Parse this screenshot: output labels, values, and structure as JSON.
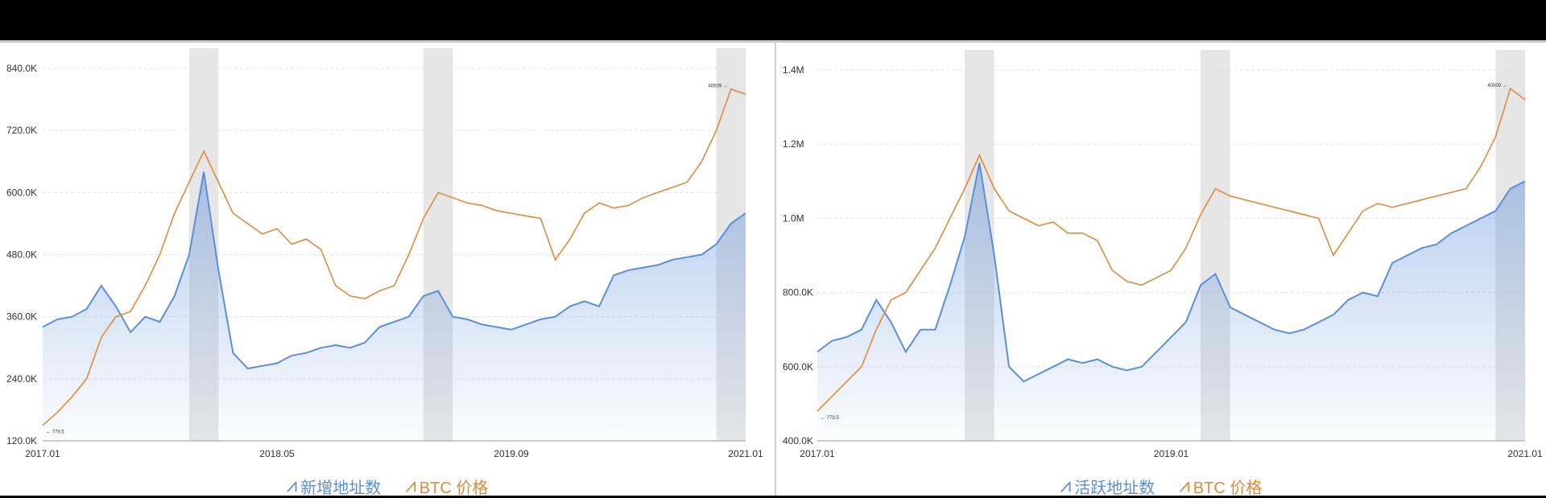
{
  "chart_data": [
    {
      "type": "line",
      "title": "",
      "xlabel": "",
      "ylabel": "",
      "x_range": [
        "2017-01",
        "2021-01"
      ],
      "x_ticks": [
        "2017.01",
        "2018.05",
        "2019.09",
        "2021.01"
      ],
      "ylim": [
        120000,
        840000
      ],
      "y_ticks": [
        "120.0K",
        "240.0K",
        "360.0K",
        "480.0K",
        "600.0K",
        "720.0K",
        "840.0K"
      ],
      "grid": true,
      "legend_position": "bottom-center",
      "colors": {
        "address": "#5b8fd9",
        "price": "#e08a3c",
        "shade": "#e6e6e6"
      },
      "shaded_periods": [
        [
          "2017-11",
          "2018-01"
        ],
        [
          "2019-03",
          "2019-05"
        ],
        [
          "2020-11",
          "2021-01"
        ]
      ],
      "series": [
        {
          "name": "新增地址数",
          "x": [
            "2017-01",
            "2017-02",
            "2017-03",
            "2017-04",
            "2017-05",
            "2017-06",
            "2017-07",
            "2017-08",
            "2017-09",
            "2017-10",
            "2017-11",
            "2017-12",
            "2018-01",
            "2018-02",
            "2018-03",
            "2018-04",
            "2018-05",
            "2018-06",
            "2018-07",
            "2018-08",
            "2018-09",
            "2018-10",
            "2018-11",
            "2018-12",
            "2019-01",
            "2019-02",
            "2019-03",
            "2019-04",
            "2019-05",
            "2019-06",
            "2019-07",
            "2019-08",
            "2019-09",
            "2019-10",
            "2019-11",
            "2019-12",
            "2020-01",
            "2020-02",
            "2020-03",
            "2020-04",
            "2020-05",
            "2020-06",
            "2020-07",
            "2020-08",
            "2020-09",
            "2020-10",
            "2020-11",
            "2020-12",
            "2021-01"
          ],
          "values": [
            340000,
            355000,
            360000,
            375000,
            420000,
            380000,
            330000,
            360000,
            350000,
            400000,
            480000,
            640000,
            450000,
            290000,
            260000,
            265000,
            270000,
            285000,
            290000,
            300000,
            305000,
            300000,
            310000,
            340000,
            350000,
            360000,
            400000,
            410000,
            360000,
            355000,
            345000,
            340000,
            335000,
            345000,
            355000,
            360000,
            380000,
            390000,
            380000,
            440000,
            450000,
            455000,
            460000,
            470000,
            475000,
            480000,
            500000,
            540000,
            560000
          ]
        },
        {
          "name": "BTC 价格",
          "x": [
            "2017-01",
            "2017-02",
            "2017-03",
            "2017-04",
            "2017-05",
            "2017-06",
            "2017-07",
            "2017-08",
            "2017-09",
            "2017-10",
            "2017-11",
            "2017-12",
            "2018-01",
            "2018-02",
            "2018-03",
            "2018-04",
            "2018-05",
            "2018-06",
            "2018-07",
            "2018-08",
            "2018-09",
            "2018-10",
            "2018-11",
            "2018-12",
            "2019-01",
            "2019-02",
            "2019-03",
            "2019-04",
            "2019-05",
            "2019-06",
            "2019-07",
            "2019-08",
            "2019-09",
            "2019-10",
            "2019-11",
            "2019-12",
            "2020-01",
            "2020-02",
            "2020-03",
            "2020-04",
            "2020-05",
            "2020-06",
            "2020-07",
            "2020-08",
            "2020-09",
            "2020-10",
            "2020-11",
            "2020-12",
            "2021-01"
          ],
          "values": [
            150000,
            175000,
            205000,
            240000,
            320000,
            360000,
            370000,
            420000,
            480000,
            560000,
            620000,
            680000,
            620000,
            560000,
            540000,
            520000,
            530000,
            500000,
            510000,
            490000,
            420000,
            400000,
            395000,
            410000,
            420000,
            480000,
            550000,
            600000,
            590000,
            580000,
            575000,
            565000,
            560000,
            555000,
            550000,
            470000,
            510000,
            560000,
            580000,
            570000,
            575000,
            590000,
            600000,
            610000,
            620000,
            660000,
            720000,
            800000,
            790000
          ]
        }
      ],
      "annotations": {
        "min_label": "779.5",
        "max_label": "40509"
      }
    },
    {
      "type": "line",
      "title": "",
      "xlabel": "",
      "ylabel": "",
      "x_range": [
        "2017-01",
        "2021-01"
      ],
      "x_ticks": [
        "2017.01",
        "2019.01",
        "2021.01"
      ],
      "ylim": [
        400000,
        1400000
      ],
      "y_ticks": [
        "400.0K",
        "600.0K",
        "800.0K",
        "1.0M",
        "1.2M",
        "1.4M"
      ],
      "grid": true,
      "legend_position": "bottom-center",
      "colors": {
        "address": "#5b8fd9",
        "price": "#e08a3c",
        "shade": "#e6e6e6"
      },
      "shaded_periods": [
        [
          "2017-11",
          "2018-01"
        ],
        [
          "2019-03",
          "2019-05"
        ],
        [
          "2020-11",
          "2021-01"
        ]
      ],
      "series": [
        {
          "name": "活跃地址数",
          "x": [
            "2017-01",
            "2017-02",
            "2017-03",
            "2017-04",
            "2017-05",
            "2017-06",
            "2017-07",
            "2017-08",
            "2017-09",
            "2017-10",
            "2017-11",
            "2017-12",
            "2018-01",
            "2018-02",
            "2018-03",
            "2018-04",
            "2018-05",
            "2018-06",
            "2018-07",
            "2018-08",
            "2018-09",
            "2018-10",
            "2018-11",
            "2018-12",
            "2019-01",
            "2019-02",
            "2019-03",
            "2019-04",
            "2019-05",
            "2019-06",
            "2019-07",
            "2019-08",
            "2019-09",
            "2019-10",
            "2019-11",
            "2019-12",
            "2020-01",
            "2020-02",
            "2020-03",
            "2020-04",
            "2020-05",
            "2020-06",
            "2020-07",
            "2020-08",
            "2020-09",
            "2020-10",
            "2020-11",
            "2020-12",
            "2021-01"
          ],
          "values": [
            640000,
            670000,
            680000,
            700000,
            780000,
            720000,
            640000,
            700000,
            700000,
            820000,
            950000,
            1150000,
            900000,
            600000,
            560000,
            580000,
            600000,
            620000,
            610000,
            620000,
            600000,
            590000,
            600000,
            640000,
            680000,
            720000,
            820000,
            850000,
            760000,
            740000,
            720000,
            700000,
            690000,
            700000,
            720000,
            740000,
            780000,
            800000,
            790000,
            880000,
            900000,
            920000,
            930000,
            960000,
            980000,
            1000000,
            1020000,
            1080000,
            1100000
          ]
        },
        {
          "name": "BTC 价格",
          "x": [
            "2017-01",
            "2017-02",
            "2017-03",
            "2017-04",
            "2017-05",
            "2017-06",
            "2017-07",
            "2017-08",
            "2017-09",
            "2017-10",
            "2017-11",
            "2017-12",
            "2018-01",
            "2018-02",
            "2018-03",
            "2018-04",
            "2018-05",
            "2018-06",
            "2018-07",
            "2018-08",
            "2018-09",
            "2018-10",
            "2018-11",
            "2018-12",
            "2019-01",
            "2019-02",
            "2019-03",
            "2019-04",
            "2019-05",
            "2019-06",
            "2019-07",
            "2019-08",
            "2019-09",
            "2019-10",
            "2019-11",
            "2019-12",
            "2020-01",
            "2020-02",
            "2020-03",
            "2020-04",
            "2020-05",
            "2020-06",
            "2020-07",
            "2020-08",
            "2020-09",
            "2020-10",
            "2020-11",
            "2020-12",
            "2021-01"
          ],
          "values": [
            480000,
            520000,
            560000,
            600000,
            700000,
            780000,
            800000,
            860000,
            920000,
            1000000,
            1080000,
            1170000,
            1080000,
            1020000,
            1000000,
            980000,
            990000,
            960000,
            960000,
            940000,
            860000,
            830000,
            820000,
            840000,
            860000,
            920000,
            1010000,
            1080000,
            1060000,
            1050000,
            1040000,
            1030000,
            1020000,
            1010000,
            1000000,
            900000,
            960000,
            1020000,
            1040000,
            1030000,
            1040000,
            1050000,
            1060000,
            1070000,
            1080000,
            1140000,
            1220000,
            1350000,
            1320000
          ]
        }
      ],
      "annotations": {
        "min_label": "779.5",
        "max_label": "40509"
      }
    }
  ]
}
